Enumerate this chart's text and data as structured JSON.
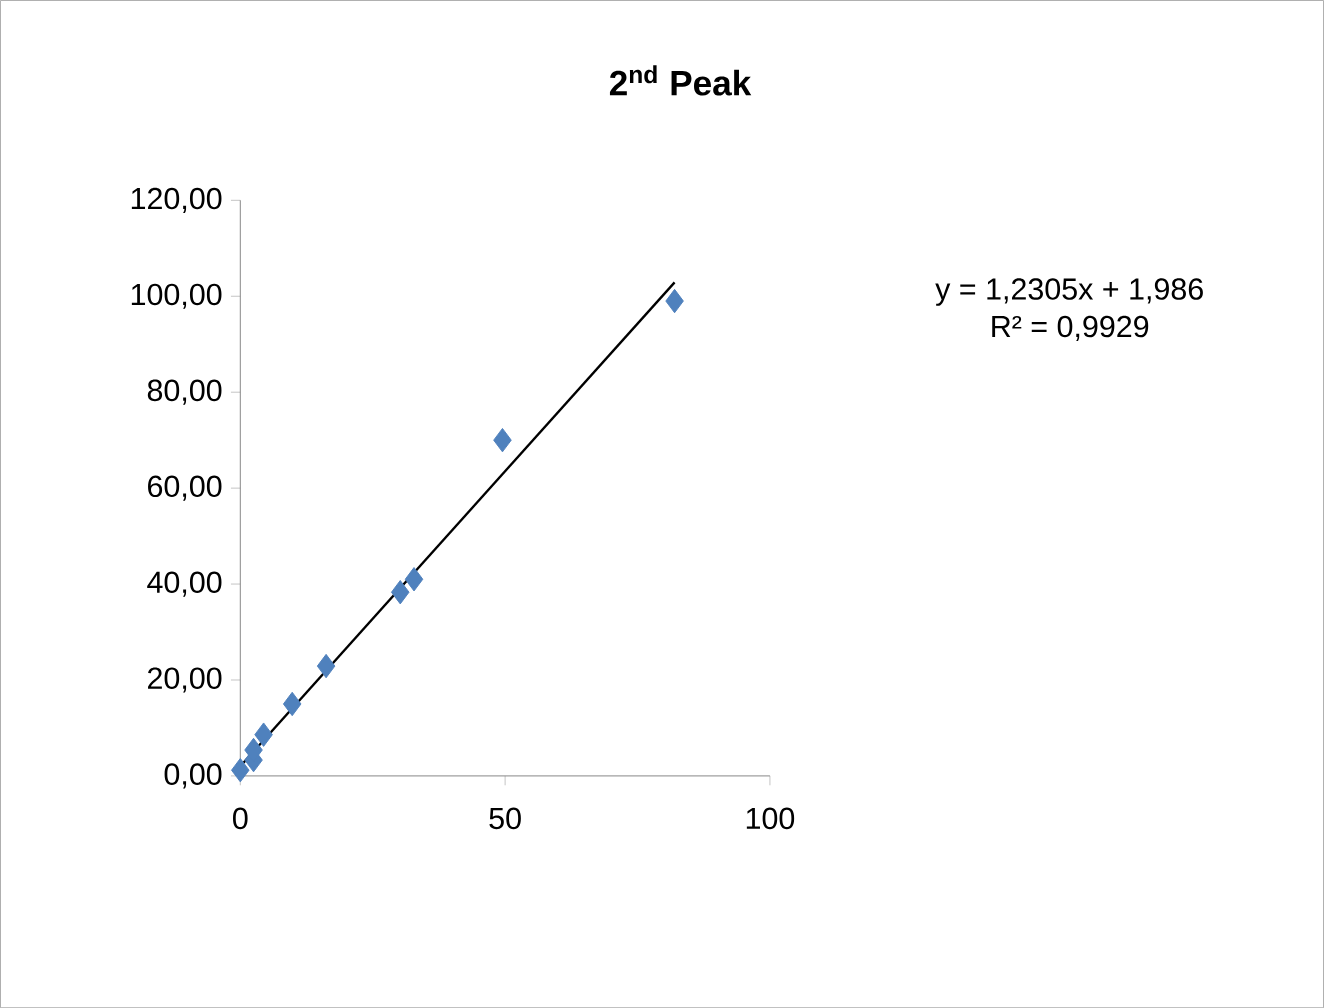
{
  "chart_data": {
    "type": "scatter",
    "title": "2$^{nd}$ Peak",
    "marker": "diamond",
    "grid": false,
    "xlim": [
      0,
      100
    ],
    "xticks": [
      0,
      50,
      100
    ],
    "ylim": [
      0,
      120
    ],
    "yticks": [
      {
        "value": 0,
        "label": "0,00"
      },
      {
        "value": 20,
        "label": "20,00"
      },
      {
        "value": 40,
        "label": "40,00"
      },
      {
        "value": 60,
        "label": "60,00"
      },
      {
        "value": 80,
        "label": "80,00"
      },
      {
        "value": 100,
        "label": "100,00"
      },
      {
        "value": 120,
        "label": "120,00"
      }
    ],
    "series": [
      {
        "color": "#4f81bd",
        "x": [
          0,
          2.5,
          2.5,
          4.4,
          9.8,
          16.2,
          30.2,
          32.8,
          49.5,
          82
        ],
        "values": [
          1.2,
          3.3,
          5.4,
          8.6,
          15,
          22.9,
          38.3,
          41,
          70,
          99
        ]
      },
      {
        "type": "line",
        "marker": "none",
        "color": "#000000",
        "x": [
          0,
          82
        ],
        "values": [
          2,
          102.9
        ]
      }
    ],
    "annotations": [
      "y = 1,2305x + 1,986",
      "R² = 0,9929"
    ]
  }
}
